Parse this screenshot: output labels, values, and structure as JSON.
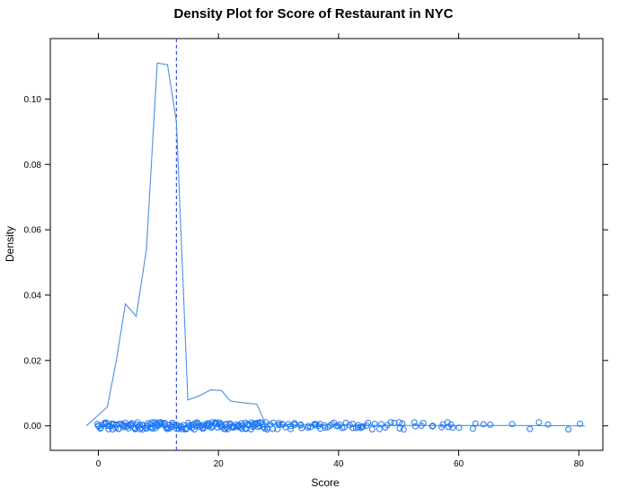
{
  "chart_data": {
    "type": "line",
    "title": "Density Plot for Score of Restaurant in NYC",
    "xlabel": "Score",
    "ylabel": "Density",
    "xlim": [
      -8,
      84
    ],
    "ylim": [
      -0.0075,
      0.1185
    ],
    "xticks": [
      0,
      20,
      40,
      60,
      80
    ],
    "yticks": [
      0.0,
      0.02,
      0.04,
      0.06,
      0.08,
      0.1
    ],
    "ytick_labels": [
      "0.00",
      "0.02",
      "0.04",
      "0.06",
      "0.08",
      "0.10"
    ],
    "xtick_labels": [
      "0",
      "20",
      "40",
      "60",
      "80"
    ],
    "grid": false,
    "mean_line_x": 13,
    "colors": {
      "density": "#4a90e2",
      "mean": "#3a4fe0",
      "points": "#1f77f4"
    },
    "series": [
      {
        "x": [
          -2,
          1.5,
          3,
          4.5,
          6.3,
          8,
          9.8,
          11.5,
          13,
          14.9,
          16.8,
          18.7,
          20.5,
          22,
          24,
          26.4,
          27.8,
          29.5,
          32,
          40,
          50,
          60,
          70,
          81
        ],
        "y": [
          0.0,
          0.0058,
          0.02,
          0.0373,
          0.0335,
          0.054,
          0.111,
          0.1105,
          0.093,
          0.0079,
          0.0092,
          0.011,
          0.0108,
          0.0076,
          0.0071,
          0.0066,
          0.0008,
          0.0005,
          0.0003,
          0.0002,
          0.0001,
          0.0001,
          0.0001,
          0.0
        ]
      }
    ],
    "rug_points": {
      "dense_range": [
        0,
        28
      ],
      "x": [
        29,
        30,
        31,
        32,
        33,
        34,
        35,
        36,
        37,
        38,
        39,
        40,
        41,
        42,
        43,
        44,
        45,
        46,
        47,
        48,
        49,
        50,
        51,
        53,
        54,
        56,
        57,
        58,
        59,
        60,
        62,
        63,
        64,
        65,
        69,
        72,
        73,
        75,
        78,
        80
      ]
    }
  }
}
